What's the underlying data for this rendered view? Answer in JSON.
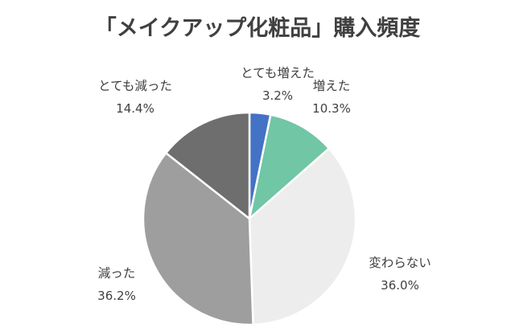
{
  "chart_data": {
    "type": "pie",
    "title": "「メイクアップ化粧品」購入頻度",
    "legend": "none",
    "slices": [
      {
        "label": "とても増えた",
        "value": 3.2,
        "value_label": "3.2%",
        "color": "#4472C4"
      },
      {
        "label": "増えた",
        "value": 10.3,
        "value_label": "10.3%",
        "color": "#70C6A5"
      },
      {
        "label": "変わらない",
        "value": 36.0,
        "value_label": "36.0%",
        "color": "#EDEDED"
      },
      {
        "label": "減った",
        "value": 36.2,
        "value_label": "36.2%",
        "color": "#9E9E9E"
      },
      {
        "label": "とても減った",
        "value": 14.4,
        "value_label": "14.4%",
        "color": "#6E6E6E"
      }
    ]
  }
}
